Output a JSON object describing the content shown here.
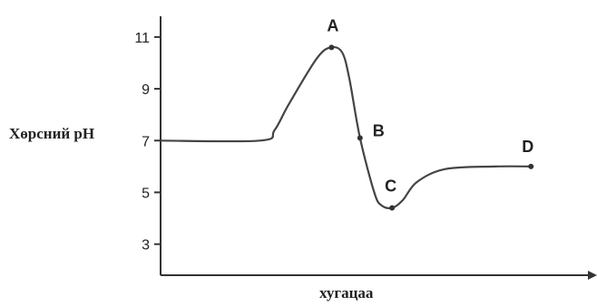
{
  "chart_data": {
    "type": "line",
    "ylabel": "Хөрсний pH",
    "xlabel": "хугацаа",
    "ylim": [
      1.8,
      11.8
    ],
    "yticks": [
      3,
      5,
      7,
      9,
      11
    ],
    "series": [
      {
        "x": [
          0,
          14,
          16,
          18,
          22,
          24,
          25.5,
          26.5,
          28,
          30,
          31,
          32.5,
          34,
          36,
          40,
          47,
          52
        ],
        "y": [
          7,
          7,
          7.4,
          8.4,
          10.2,
          10.6,
          10.4,
          9.4,
          7.1,
          5.0,
          4.5,
          4.4,
          4.7,
          5.4,
          5.9,
          6.0,
          6.0
        ]
      }
    ],
    "points": [
      {
        "label": "A",
        "x": 24,
        "y": 10.6
      },
      {
        "label": "B",
        "x": 28,
        "y": 7.1
      },
      {
        "label": "C",
        "x": 32.5,
        "y": 4.4
      },
      {
        "label": "D",
        "x": 52,
        "y": 6.0
      }
    ],
    "grid": false
  }
}
